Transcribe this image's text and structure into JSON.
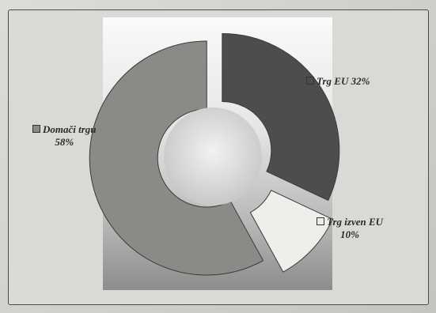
{
  "chart_data": {
    "type": "pie",
    "categories": [
      "Trg EU",
      "Trg izven EU",
      "Domači trgu"
    ],
    "values": [
      32,
      10,
      58
    ],
    "labels": [
      {
        "name": "Trg EU",
        "percent": "32%"
      },
      {
        "name": "Trg izven EU",
        "percent": "10%"
      },
      {
        "name": "Domači trgu",
        "percent": "58%"
      }
    ],
    "colors": [
      "#4d4d4d",
      "#eeeeea",
      "#8a8a87"
    ],
    "exploded": true,
    "style": "doughnut",
    "legend_placement": "beside slices"
  }
}
